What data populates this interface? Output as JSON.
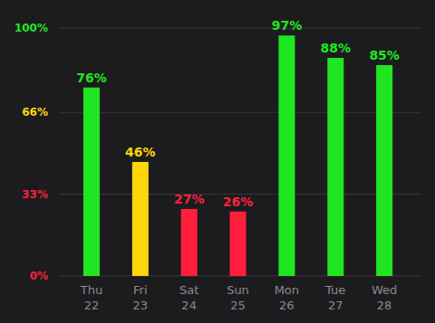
{
  "chart_data": {
    "type": "bar",
    "categories": [
      "Thu 22",
      "Fri 23",
      "Sat 24",
      "Sun 25",
      "Mon 26",
      "Tue 27",
      "Wed 28"
    ],
    "values": [
      76,
      46,
      27,
      26,
      97,
      88,
      85
    ],
    "value_labels": [
      "76%",
      "46%",
      "27%",
      "26%",
      "97%",
      "88%",
      "85%"
    ],
    "colors": [
      "#1fe620",
      "#ffd60a",
      "#ff1f3d",
      "#ff1f3d",
      "#1fe620",
      "#1fe620",
      "#1fe620"
    ],
    "ylim": [
      0,
      100
    ],
    "yticks": [
      {
        "value": 0,
        "label": "0%"
      },
      {
        "value": 33,
        "label": "33%"
      },
      {
        "value": 66,
        "label": "66%"
      },
      {
        "value": 100,
        "label": "100%"
      }
    ],
    "grid": true,
    "data_labels": true
  }
}
